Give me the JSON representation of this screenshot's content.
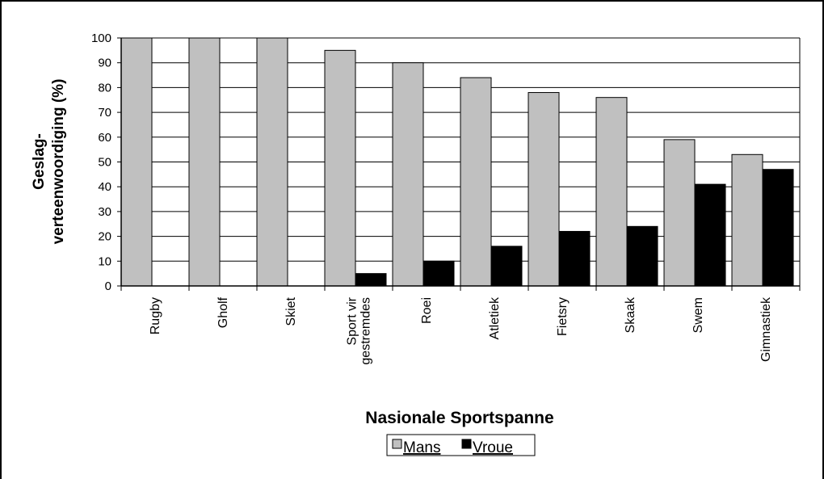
{
  "chart_data": {
    "type": "bar",
    "xlabel": "Nasionale Sportspanne",
    "ylabel_lines": [
      "Geslag-",
      "verteenwoordiging (%)"
    ],
    "ylim": [
      0,
      100
    ],
    "yticks": [
      0,
      10,
      20,
      30,
      40,
      50,
      60,
      70,
      80,
      90,
      100
    ],
    "grid": true,
    "legend_position": "bottom",
    "categories": [
      [
        "Rugby"
      ],
      [
        "Gholf"
      ],
      [
        "Skiet"
      ],
      [
        "Sport vir",
        "gestremdes"
      ],
      [
        "Roei"
      ],
      [
        "Atletiek"
      ],
      [
        "Fietsry"
      ],
      [
        "Skaak"
      ],
      [
        "Swem"
      ],
      [
        "Gimnastiek"
      ]
    ],
    "series": [
      {
        "name": "Mans",
        "color": "#c0c0c0",
        "values": [
          100,
          100,
          100,
          95,
          90,
          84,
          78,
          76,
          59,
          53
        ]
      },
      {
        "name": "Vroue",
        "color": "#000000",
        "values": [
          0,
          0,
          0,
          5,
          10,
          16,
          22,
          24,
          41,
          47
        ]
      }
    ]
  }
}
